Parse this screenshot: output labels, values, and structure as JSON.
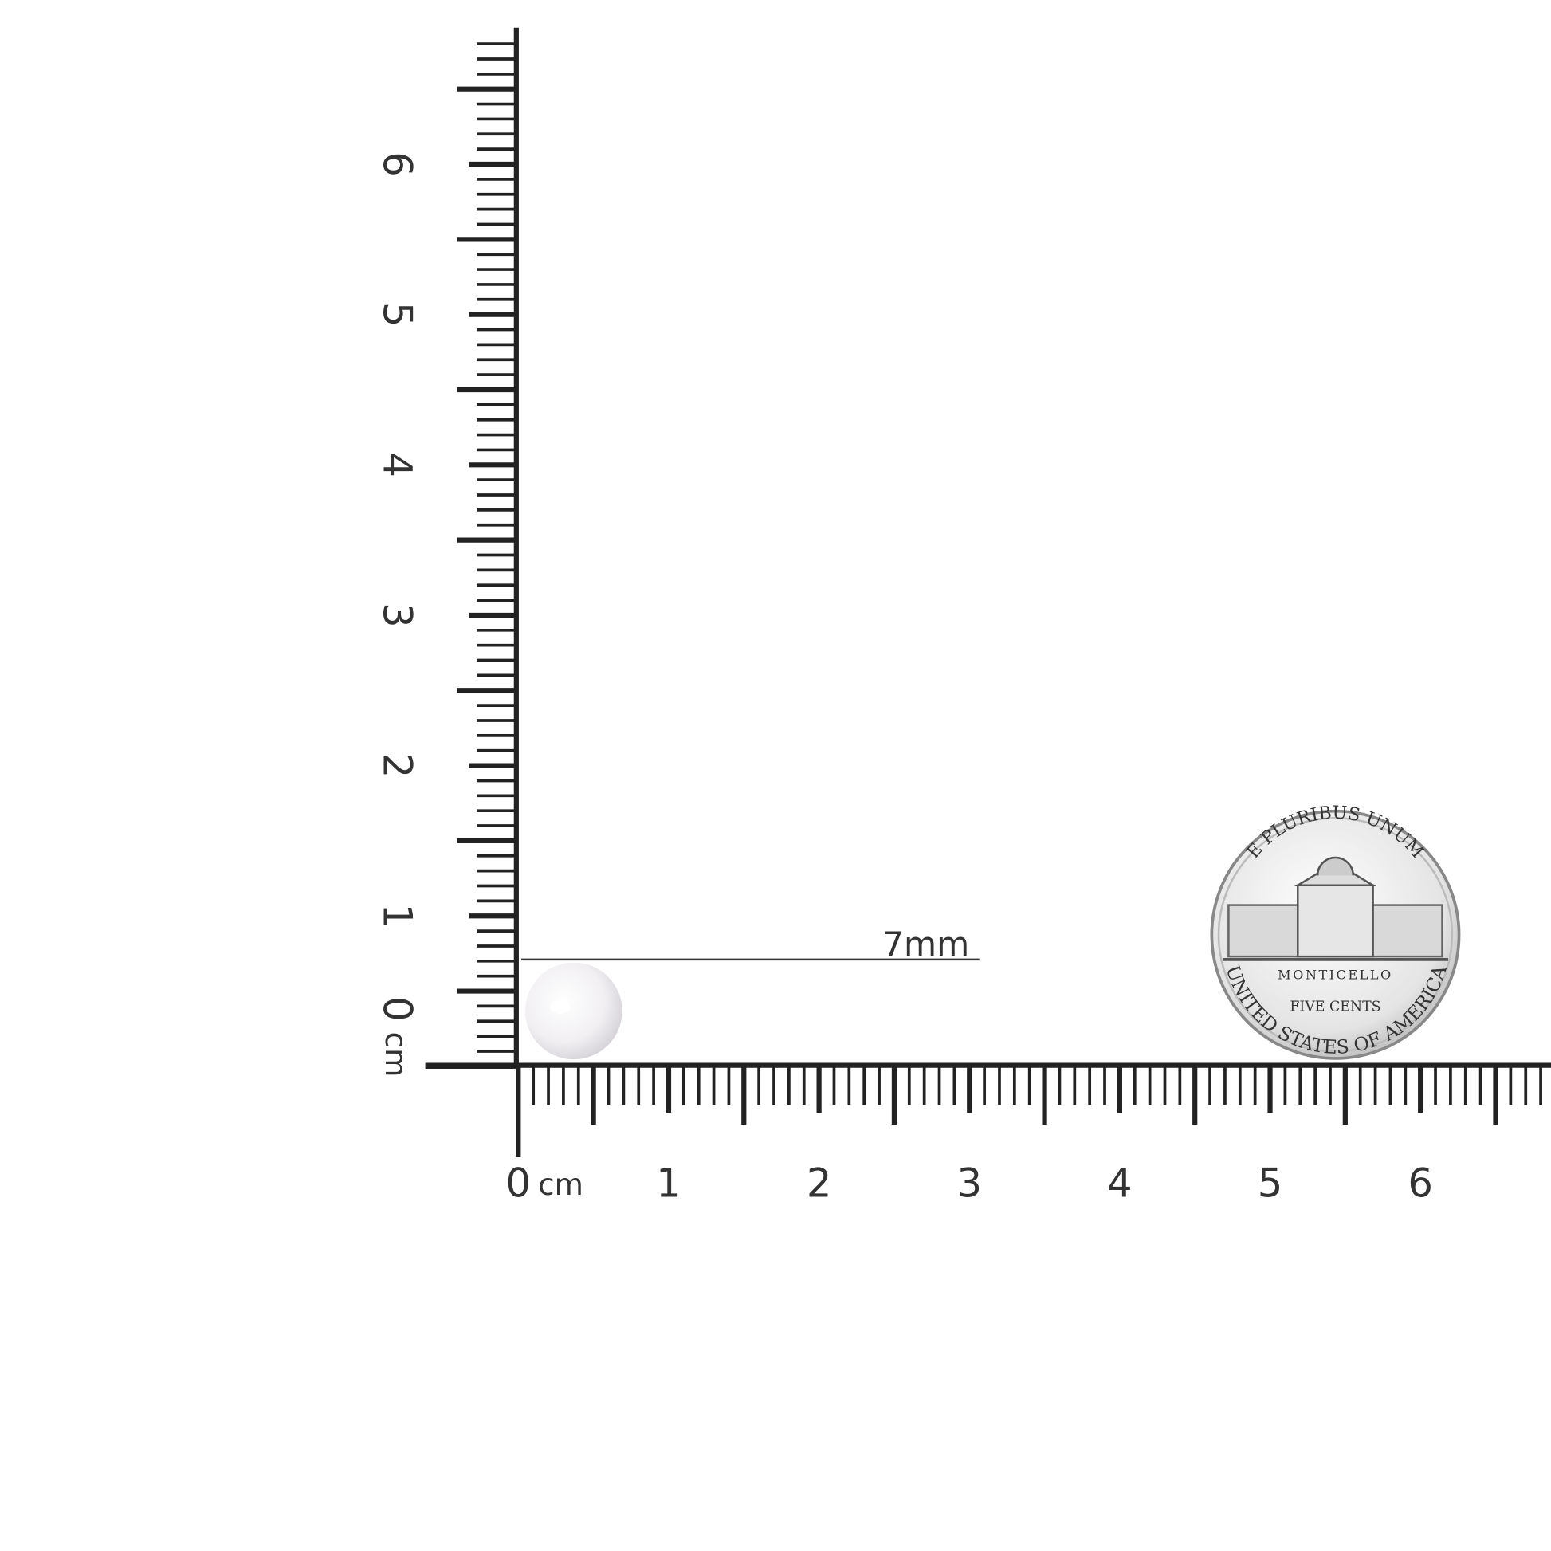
{
  "vertical_ruler": {
    "unit": "cm",
    "labels": [
      0,
      1,
      2,
      3,
      4,
      5,
      6
    ]
  },
  "horizontal_ruler": {
    "unit": "cm",
    "labels": [
      0,
      1,
      2,
      3,
      4,
      5,
      6
    ]
  },
  "pearl": {
    "size_label": "7mm"
  },
  "coin": {
    "top_text": "E PLURIBUS UNUM",
    "building_label": "MONTICELLO",
    "denomination": "FIVE CENTS",
    "bottom_text": "UNITED STATES OF AMERICA"
  }
}
